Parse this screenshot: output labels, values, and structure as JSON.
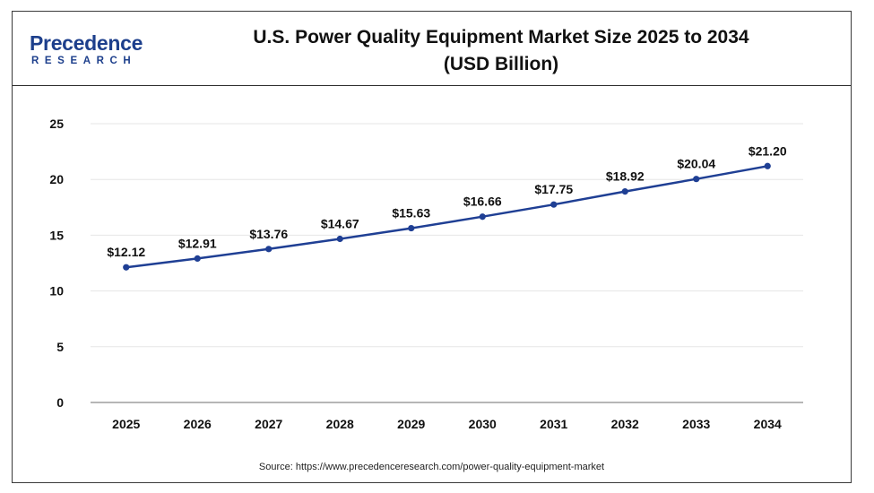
{
  "header": {
    "logo": {
      "name": "Precedence",
      "sub": "RESEARCH"
    },
    "title_line1": "U.S. Power Quality Equipment Market Size 2025 to 2034",
    "title_line2": "(USD Billion)"
  },
  "source": "Source: https://www.precedenceresearch.com/power-quality-equipment-market",
  "colors": {
    "line": "#1f3f94",
    "grid": "#e6e6e6",
    "axis": "#8a8a8a",
    "text": "#111111"
  },
  "chart_data": {
    "type": "line",
    "categories": [
      "2025",
      "2026",
      "2027",
      "2028",
      "2029",
      "2030",
      "2031",
      "2032",
      "2033",
      "2034"
    ],
    "values": [
      12.12,
      12.91,
      13.76,
      14.67,
      15.63,
      16.66,
      17.75,
      18.92,
      20.04,
      21.2
    ],
    "data_labels": [
      "$12.12",
      "$12.91",
      "$13.76",
      "$14.67",
      "$15.63",
      "$16.66",
      "$17.75",
      "$18.92",
      "$20.04",
      "$21.20"
    ],
    "yticks": [
      "0",
      "5",
      "10",
      "15",
      "20",
      "25"
    ],
    "ylim": [
      0,
      25
    ],
    "grid": true,
    "legend": "none"
  }
}
